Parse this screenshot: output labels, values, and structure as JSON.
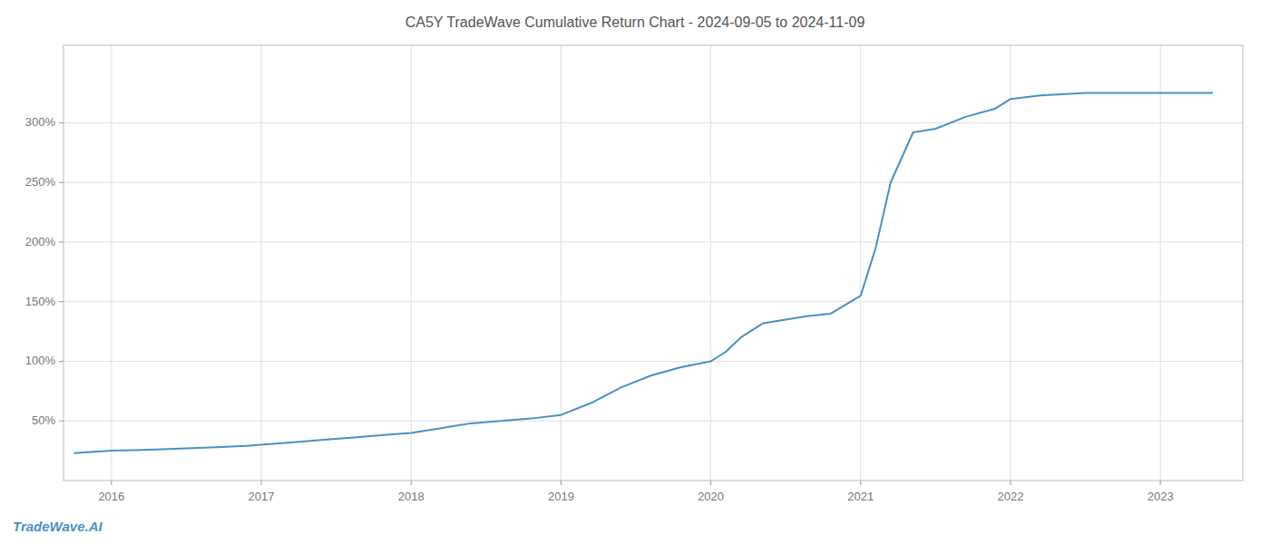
{
  "chart_data": {
    "type": "line",
    "title": "CA5Y TradeWave Cumulative Return Chart - 2024-09-05 to 2024-11-09",
    "annotations": [
      "TradeWave.AI"
    ],
    "x": [
      2015.75,
      2016.0,
      2016.15,
      2016.3,
      2016.5,
      2016.7,
      2016.9,
      2017.0,
      2017.2,
      2017.4,
      2017.6,
      2017.8,
      2018.0,
      2018.2,
      2018.4,
      2018.6,
      2018.8,
      2019.0,
      2019.2,
      2019.4,
      2019.6,
      2019.8,
      2020.0,
      2020.1,
      2020.2,
      2020.35,
      2020.5,
      2020.65,
      2020.8,
      2021.0,
      2021.1,
      2021.2,
      2021.35,
      2021.5,
      2021.7,
      2021.9,
      2022.0,
      2022.2,
      2022.5,
      2022.75,
      2022.9,
      2023.0,
      2023.2,
      2023.35
    ],
    "values": [
      23,
      25,
      25.5,
      26,
      27,
      28,
      29,
      30,
      32,
      34,
      36,
      38,
      40,
      44,
      48,
      50,
      52,
      55,
      65,
      78,
      88,
      95,
      100,
      108,
      120,
      132,
      135,
      138,
      140,
      155,
      195,
      250,
      292,
      295,
      305,
      312,
      320,
      323,
      325,
      325,
      325,
      325,
      325,
      325
    ],
    "color": "#4a90c4",
    "xlim": [
      2015.68,
      2023.55
    ],
    "ylim": [
      0,
      365
    ],
    "xticks": [
      2016,
      2017,
      2018,
      2019,
      2020,
      2021,
      2022,
      2023
    ],
    "yticks": [
      {
        "value": 50,
        "label": "50%"
      },
      {
        "value": 100,
        "label": "100%"
      },
      {
        "value": 150,
        "label": "150%"
      },
      {
        "value": 200,
        "label": "200%"
      },
      {
        "value": 250,
        "label": "250%"
      },
      {
        "value": 300,
        "label": "300%"
      }
    ],
    "grid": true
  }
}
